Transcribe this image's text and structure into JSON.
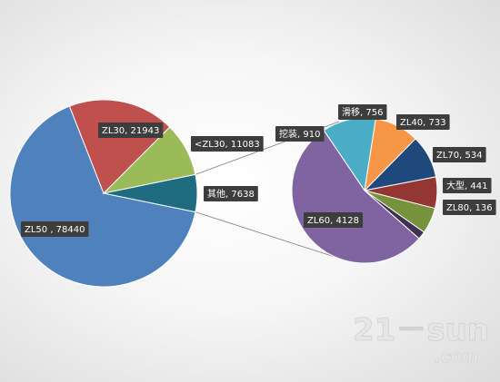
{
  "chart_data": [
    {
      "type": "pie",
      "title": "",
      "slices": [
        {
          "label": "ZL50 , 78440",
          "name": "ZL50",
          "value": 78440,
          "color": "#4f81bd"
        },
        {
          "label": "ZL30, 21943",
          "name": "ZL30",
          "value": 21943,
          "color": "#c0504d"
        },
        {
          "label": "<ZL30, 11083",
          "name": "<ZL30",
          "value": 11083,
          "color": "#9bbb59"
        },
        {
          "label": "其他, 7638",
          "name": "其他",
          "value": 7638,
          "color": "#1f6b80"
        }
      ]
    },
    {
      "type": "pie",
      "title": "",
      "slices": [
        {
          "label": "挖装, 910",
          "name": "挖装",
          "value": 910,
          "color": "#4bacc6"
        },
        {
          "label": "滑移, 756",
          "name": "滑移",
          "value": 756,
          "color": "#f79646"
        },
        {
          "label": "ZL40, 733",
          "name": "ZL40",
          "value": 733,
          "color": "#1f497d"
        },
        {
          "label": "ZL70, 534",
          "name": "ZL70",
          "value": 534,
          "color": "#943634"
        },
        {
          "label": "大型, 441",
          "name": "大型",
          "value": 441,
          "color": "#76923c"
        },
        {
          "label": "ZL80, 136",
          "name": "ZL80",
          "value": 136,
          "color": "#3f3151"
        },
        {
          "label": "ZL60, 4128",
          "name": "ZL60",
          "value": 4128,
          "color": "#8064a2"
        }
      ]
    }
  ],
  "watermark": {
    "main": "21－sun",
    "sub": ".com"
  }
}
